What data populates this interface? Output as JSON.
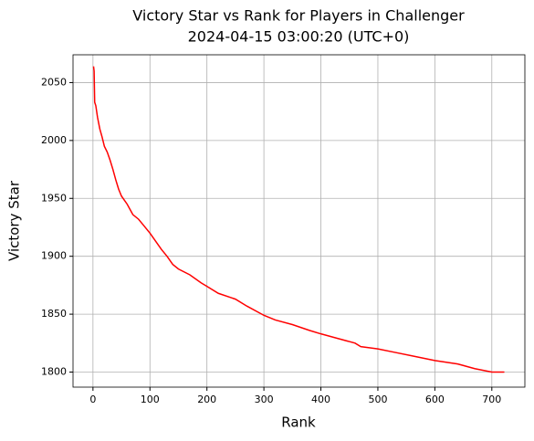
{
  "chart_data": {
    "type": "line",
    "title": "Victory Star vs Rank for Players in Challenger",
    "subtitle": "2024-04-15 03:00:20 (UTC+0)",
    "x_label": "Rank",
    "y_label": "Victory Star",
    "x": [
      1,
      2,
      3,
      5,
      8,
      12,
      16,
      20,
      25,
      30,
      35,
      40,
      45,
      50,
      60,
      70,
      80,
      90,
      100,
      110,
      120,
      130,
      140,
      150,
      170,
      190,
      200,
      220,
      250,
      270,
      300,
      320,
      350,
      380,
      400,
      430,
      460,
      470,
      500,
      530,
      560,
      600,
      640,
      670,
      700,
      722
    ],
    "series": [
      {
        "color": "red",
        "values": [
          2064,
          2060,
          2033,
          2030,
          2020,
          2010,
          2003,
          1995,
          1990,
          1983,
          1975,
          1966,
          1958,
          1952,
          1945,
          1936,
          1932,
          1926,
          1920,
          1913,
          1906,
          1900,
          1893,
          1889,
          1884,
          1877,
          1874,
          1868,
          1863,
          1857,
          1849,
          1845,
          1841,
          1836,
          1833,
          1829,
          1825,
          1822,
          1820,
          1817,
          1814,
          1810,
          1807,
          1803,
          1800,
          1800
        ]
      }
    ],
    "xlim": [
      -35,
      758
    ],
    "ylim": [
      1787,
      2074
    ],
    "xticks": [
      0,
      100,
      200,
      300,
      400,
      500,
      600,
      700
    ],
    "yticks": [
      1800,
      1850,
      1900,
      1950,
      2000,
      2050
    ],
    "grid": true
  }
}
